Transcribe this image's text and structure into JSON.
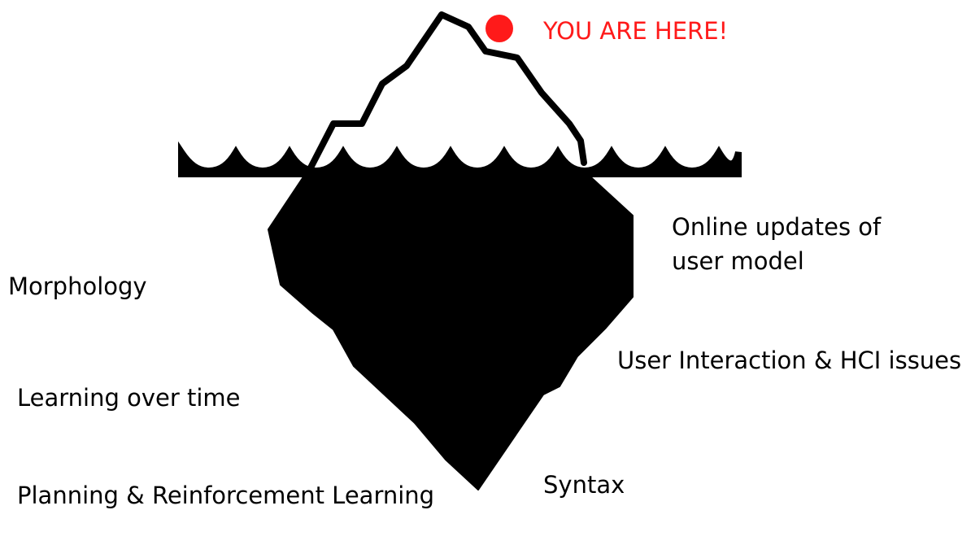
{
  "diagram": {
    "marker": {
      "label": "YOU ARE HERE!",
      "color": "#ff1a1a",
      "icon": "red-dot-marker-icon"
    },
    "iceberg": {
      "tip_icon": "iceberg-tip-icon",
      "underwater_icon": "iceberg-underwater-icon",
      "water_icon": "water-waves-icon",
      "fill_color": "#000000",
      "tip_color": "#ffffff"
    },
    "labels": {
      "online_updates": [
        "Online updates of",
        "user model"
      ],
      "morphology": "Morphology",
      "user_interaction": "User Interaction & HCI issues",
      "learning_over_time": "Learning over time",
      "syntax": "Syntax",
      "planning": "Planning & Reinforcement Learning"
    }
  }
}
